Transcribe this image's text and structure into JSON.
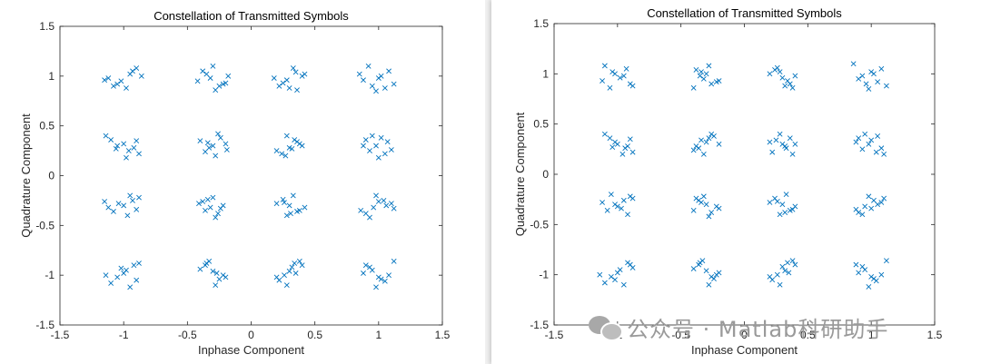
{
  "chart_data": [
    {
      "type": "scatter",
      "title": "Constellation of Transmitted Symbols",
      "xlabel": "Inphase Component",
      "ylabel": "Quadrature Component",
      "xlim": [
        -1.5,
        1.5
      ],
      "ylim": [
        -1.5,
        1.5
      ],
      "xticks": [
        -1.5,
        -1,
        -0.5,
        0,
        0.5,
        1,
        1.5
      ],
      "yticks": [
        -1.5,
        -1,
        -0.5,
        0,
        0.5,
        1,
        1.5
      ],
      "xtick_labels": [
        "-1.5",
        "-1",
        "-0.5",
        "0",
        "0.5",
        "1",
        "1.5"
      ],
      "ytick_labels": [
        "-1.5",
        "-1",
        "-0.5",
        "0",
        "0.5",
        "1",
        "1.5"
      ],
      "marker": "x",
      "marker_color": "#0072bd",
      "grid": false,
      "series": [
        {
          "x": [
            -1.02,
            -0.95,
            -1.08,
            -0.9,
            -1.12,
            -0.98,
            -0.86,
            -1.05,
            -0.93,
            -1.15,
            -0.32,
            -0.25,
            -0.38,
            -0.2,
            -0.3,
            -0.42,
            -0.18,
            -0.28,
            -0.35,
            -0.22,
            0.28,
            0.35,
            0.22,
            0.4,
            0.3,
            0.18,
            0.33,
            0.25,
            0.42,
            0.36,
            0.95,
            1.02,
            0.88,
            1.08,
            0.98,
            0.92,
            1.12,
            1.0,
            0.85,
            1.05,
            -1.05,
            -0.96,
            -1.1,
            -0.88,
            -1.0,
            -0.92,
            -1.14,
            -0.98,
            -0.9,
            -1.06,
            -0.3,
            -0.24,
            -0.36,
            -0.2,
            -0.28,
            -0.4,
            -0.33,
            -0.26,
            -0.19,
            -0.34,
            0.3,
            0.36,
            0.24,
            0.4,
            0.28,
            0.2,
            0.34,
            0.27,
            0.38,
            0.32,
            0.98,
            1.05,
            0.9,
            1.1,
            0.95,
            0.88,
            1.0,
            1.07,
            0.93,
            1.02,
            -1.0,
            -0.93,
            -1.08,
            -0.88,
            -1.12,
            -0.97,
            -1.04,
            -0.9,
            -1.15,
            -0.95,
            -0.32,
            -0.26,
            -0.38,
            -0.22,
            -0.3,
            -0.36,
            -0.28,
            -0.41,
            -0.24,
            -0.34,
            0.3,
            0.36,
            0.25,
            0.42,
            0.28,
            0.2,
            0.33,
            0.38,
            0.26,
            0.31,
            0.96,
            1.04,
            0.9,
            1.1,
            0.98,
            0.86,
            1.06,
            0.93,
            1.0,
            1.12,
            -0.98,
            -1.05,
            -0.92,
            -1.1,
            -1.0,
            -0.88,
            -1.14,
            -0.95,
            -1.02,
            -0.9,
            -0.3,
            -0.25,
            -0.36,
            -0.22,
            -0.33,
            -0.28,
            -0.4,
            -0.2,
            -0.35,
            -0.27,
            0.32,
            0.26,
            0.38,
            0.22,
            0.3,
            0.4,
            0.28,
            0.35,
            0.2,
            0.34,
            0.95,
            1.02,
            0.9,
            1.08,
            0.98,
            1.12,
            0.88,
            1.05,
            0.93,
            1.0
          ],
          "y": [
            0.95,
            1.02,
            0.9,
            1.08,
            0.98,
            0.88,
            1.0,
            0.92,
            1.05,
            0.96,
            0.98,
            0.9,
            1.05,
            0.93,
            1.1,
            0.95,
            1.0,
            0.86,
            1.02,
            0.92,
            0.96,
            1.04,
            0.9,
            1.0,
            0.88,
            0.98,
            1.08,
            0.93,
            1.02,
            0.86,
            0.9,
            1.0,
            0.96,
            1.05,
            0.85,
            1.1,
            0.92,
            0.98,
            1.02,
            0.88,
            0.3,
            0.25,
            0.36,
            0.22,
            0.32,
            0.28,
            0.4,
            0.18,
            0.35,
            0.27,
            0.3,
            0.38,
            0.24,
            0.32,
            0.2,
            0.35,
            0.28,
            0.42,
            0.26,
            0.33,
            0.28,
            0.34,
            0.22,
            0.3,
            0.4,
            0.25,
            0.36,
            0.2,
            0.32,
            0.27,
            0.3,
            0.22,
            0.36,
            0.26,
            0.4,
            0.3,
            0.18,
            0.34,
            0.25,
            0.38,
            -0.3,
            -0.25,
            -0.36,
            -0.22,
            -0.32,
            -0.4,
            -0.28,
            -0.34,
            -0.26,
            -0.2,
            -0.32,
            -0.38,
            -0.26,
            -0.3,
            -0.22,
            -0.35,
            -0.42,
            -0.28,
            -0.33,
            -0.24,
            -0.3,
            -0.36,
            -0.24,
            -0.32,
            -0.4,
            -0.28,
            -0.2,
            -0.35,
            -0.27,
            -0.38,
            -0.32,
            -0.25,
            -0.38,
            -0.28,
            -0.2,
            -0.35,
            -0.3,
            -0.42,
            -0.26,
            -0.33,
            -0.95,
            -1.02,
            -0.9,
            -1.08,
            -0.98,
            -0.88,
            -1.0,
            -1.12,
            -0.93,
            -1.05,
            -0.96,
            -1.04,
            -0.9,
            -1.0,
            -0.86,
            -1.1,
            -0.94,
            -1.02,
            -0.88,
            -0.98,
            -0.92,
            -1.0,
            -0.86,
            -1.05,
            -0.96,
            -0.9,
            -1.1,
            -0.98,
            -1.02,
            -0.88,
            -0.95,
            -1.04,
            -0.9,
            -1.0,
            -1.12,
            -0.86,
            -0.98,
            -1.06,
            -0.92,
            -1.02
          ]
        }
      ]
    },
    {
      "type": "scatter",
      "title": "Constellation of Transmitted Symbols",
      "xlabel": "Inphase Component",
      "ylabel": "Quadrature Component",
      "xlim": [
        -1.5,
        1.5
      ],
      "ylim": [
        -1.5,
        1.5
      ],
      "xticks": [
        -1.5,
        -1,
        -0.5,
        0,
        0.5,
        1,
        1.5
      ],
      "yticks": [
        -1.5,
        -1,
        -0.5,
        0,
        0.5,
        1,
        1.5
      ],
      "xtick_labels": [
        "-1.5",
        "-1",
        "-0.5",
        "0",
        "0.5",
        "1",
        "1.5"
      ],
      "ytick_labels": [
        "-1.5",
        "-1",
        "-0.5",
        "0",
        "0.5",
        "1",
        "1.5"
      ],
      "marker": "x",
      "marker_color": "#0072bd",
      "grid": false,
      "series": [
        {
          "x": [
            -0.98,
            -1.04,
            -0.9,
            -1.1,
            -0.95,
            -0.88,
            -1.02,
            -1.12,
            -0.93,
            -1.06,
            -0.32,
            -0.26,
            -0.38,
            -0.22,
            -0.3,
            -0.4,
            -0.28,
            -0.35,
            -0.2,
            -0.34,
            0.3,
            0.24,
            0.36,
            0.2,
            0.32,
            0.4,
            0.26,
            0.34,
            0.28,
            0.38,
            0.96,
            1.02,
            0.9,
            1.08,
            0.98,
            0.86,
            1.05,
            0.93,
            1.0,
            1.12,
            -1.0,
            -0.94,
            -1.06,
            -0.88,
            -1.02,
            -0.92,
            -1.1,
            -0.96,
            -0.9,
            -1.04,
            -0.3,
            -0.24,
            -0.36,
            -0.2,
            -0.32,
            -0.28,
            -0.38,
            -0.26,
            -0.4,
            -0.34,
            0.3,
            0.36,
            0.22,
            0.4,
            0.28,
            0.33,
            0.25,
            0.38,
            0.2,
            0.32,
            0.98,
            1.04,
            0.9,
            1.08,
            0.95,
            0.88,
            1.1,
            1.0,
            0.93,
            1.05,
            -1.02,
            -0.95,
            -1.08,
            -0.9,
            -1.0,
            -0.92,
            -1.12,
            -0.97,
            -0.88,
            -1.05,
            -0.3,
            -0.26,
            -0.36,
            -0.22,
            -0.32,
            -0.4,
            -0.28,
            -0.34,
            -0.2,
            -0.38,
            0.3,
            0.36,
            0.24,
            0.4,
            0.28,
            0.2,
            0.33,
            0.38,
            0.26,
            0.32,
            0.95,
            1.02,
            0.9,
            1.08,
            0.98,
            0.88,
            1.05,
            0.93,
            1.1,
            1.0,
            -0.98,
            -1.05,
            -0.9,
            -1.1,
            -1.0,
            -0.92,
            -1.14,
            -0.95,
            -0.88,
            -1.02,
            -0.3,
            -0.24,
            -0.36,
            -0.22,
            -0.33,
            -0.28,
            -0.4,
            -0.26,
            -0.35,
            -0.2,
            0.3,
            0.26,
            0.38,
            0.22,
            0.32,
            0.4,
            0.28,
            0.35,
            0.2,
            0.34,
            0.95,
            1.02,
            0.88,
            1.08,
            0.98,
            1.12,
            0.9,
            1.04,
            0.93,
            1.0
          ],
          "y": [
            0.96,
            1.02,
            0.9,
            1.08,
            0.98,
            0.88,
            1.0,
            0.93,
            1.05,
            0.86,
            0.95,
            0.9,
            1.04,
            0.92,
            1.0,
            0.86,
            1.08,
            0.98,
            0.93,
            1.02,
            0.96,
            1.04,
            0.9,
            1.0,
            0.88,
            0.98,
            1.06,
            0.93,
            1.02,
            0.86,
            0.9,
            1.0,
            0.95,
            1.05,
            0.85,
            1.1,
            0.92,
            0.98,
            1.02,
            0.88,
            0.3,
            0.26,
            0.36,
            0.22,
            0.32,
            0.28,
            0.4,
            0.2,
            0.35,
            0.27,
            0.32,
            0.38,
            0.26,
            0.3,
            0.2,
            0.36,
            0.28,
            0.4,
            0.24,
            0.34,
            0.3,
            0.36,
            0.22,
            0.3,
            0.4,
            0.26,
            0.34,
            0.2,
            0.32,
            0.28,
            0.3,
            0.22,
            0.36,
            0.26,
            0.4,
            0.32,
            0.2,
            0.34,
            0.25,
            0.38,
            -0.3,
            -0.26,
            -0.36,
            -0.22,
            -0.32,
            -0.4,
            -0.28,
            -0.34,
            -0.24,
            -0.2,
            -0.3,
            -0.38,
            -0.26,
            -0.32,
            -0.22,
            -0.36,
            -0.42,
            -0.28,
            -0.34,
            -0.24,
            -0.3,
            -0.36,
            -0.24,
            -0.32,
            -0.4,
            -0.28,
            -0.2,
            -0.35,
            -0.27,
            -0.38,
            -0.32,
            -0.26,
            -0.38,
            -0.28,
            -0.22,
            -0.35,
            -0.3,
            -0.4,
            -0.24,
            -0.34,
            -0.95,
            -1.02,
            -0.9,
            -1.08,
            -0.98,
            -0.88,
            -1.0,
            -1.1,
            -0.93,
            -1.05,
            -0.96,
            -1.04,
            -0.9,
            -1.0,
            -0.86,
            -1.1,
            -0.94,
            -1.02,
            -0.88,
            -0.98,
            -0.92,
            -1.0,
            -0.86,
            -1.05,
            -0.96,
            -0.9,
            -1.1,
            -0.98,
            -1.02,
            -0.88,
            -0.95,
            -1.04,
            -0.9,
            -1.0,
            -1.12,
            -0.86,
            -0.98,
            -1.06,
            -0.92,
            -1.02
          ]
        }
      ]
    }
  ],
  "watermark": {
    "text": "公众号 · Matlab科研助手"
  }
}
